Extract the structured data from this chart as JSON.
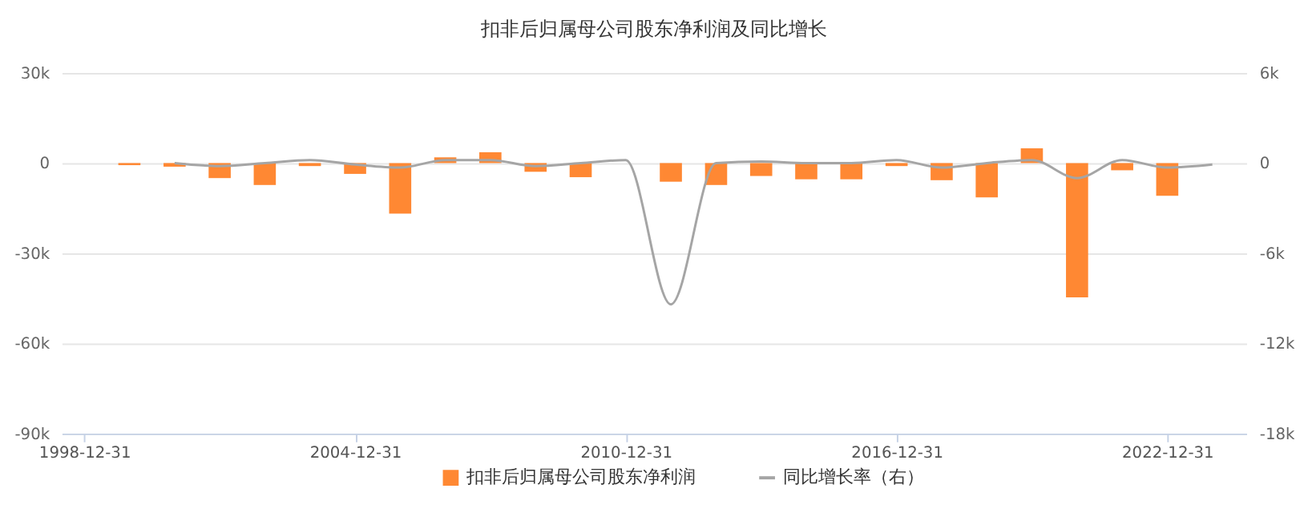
{
  "chart_data": {
    "type": "bar",
    "title": "扣非后归属母公司股东净利润及同比增长",
    "x": [
      "1999-12-31",
      "2000-12-31",
      "2001-12-31",
      "2002-12-31",
      "2003-12-31",
      "2004-12-31",
      "2005-12-31",
      "2006-12-31",
      "2007-12-31",
      "2008-12-31",
      "2009-12-31",
      "2010-12-31",
      "2011-12-31",
      "2012-12-31",
      "2013-12-31",
      "2014-12-31",
      "2015-12-31",
      "2016-12-31",
      "2017-12-31",
      "2018-12-31",
      "2019-12-31",
      "2020-12-31",
      "2021-12-31",
      "2022-12-31",
      "2023-12-31"
    ],
    "series": [
      {
        "name": "扣非后归属母公司股东净利润",
        "type": "bar",
        "color": "#ff8833",
        "values": [
          -700,
          -1200,
          -5000,
          -7300,
          -1000,
          -3600,
          -16800,
          1900,
          3600,
          -2900,
          -4700,
          null,
          -6200,
          -7300,
          -4300,
          -5400,
          -5400,
          -1000,
          -5700,
          -11400,
          4900,
          -44700,
          -2400,
          -10900,
          null
        ]
      },
      {
        "name": "同比增长率（右）",
        "type": "line",
        "axis": "y2",
        "color": "#a5a5a5",
        "values": [
          null,
          0,
          -200,
          0,
          200,
          -100,
          -300,
          200,
          200,
          -200,
          0,
          200,
          -9400,
          0,
          100,
          0,
          0,
          200,
          -300,
          0,
          200,
          -1000,
          200,
          -300,
          -100
        ]
      }
    ],
    "xlim": [
      "1998-07-01",
      "2024-10-01"
    ],
    "xticks": [
      "1998-12-31",
      "2004-12-31",
      "2010-12-31",
      "2016-12-31",
      "2022-12-31"
    ],
    "ylim": [
      -90000,
      30000
    ],
    "yticks": [
      {
        "value": -90000,
        "label": "-90k"
      },
      {
        "value": -60000,
        "label": "-60k"
      },
      {
        "value": -30000,
        "label": "-30k"
      },
      {
        "value": 0,
        "label": "0"
      },
      {
        "value": 30000,
        "label": "30k"
      }
    ],
    "y2lim": [
      -18000,
      6000
    ],
    "y2ticks": [
      {
        "value": -18000,
        "label": "-18k"
      },
      {
        "value": -12000,
        "label": "-12k"
      },
      {
        "value": -6000,
        "label": "-6k"
      },
      {
        "value": 0,
        "label": "0"
      },
      {
        "value": 6000,
        "label": "6k"
      }
    ],
    "grid": "y",
    "legend": "bottom"
  }
}
